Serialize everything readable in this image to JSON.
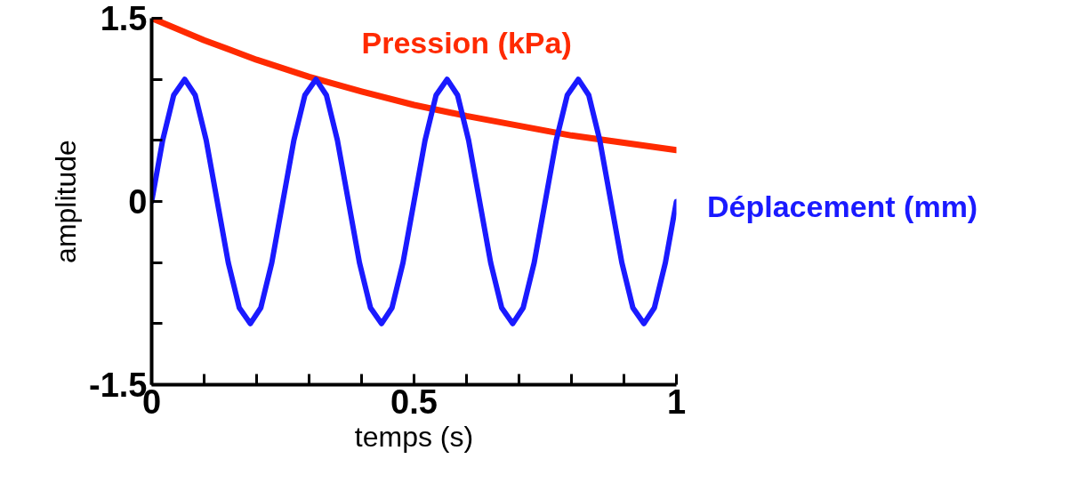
{
  "chart_data": {
    "type": "line",
    "xlabel": "temps (s)",
    "ylabel": "amplitude",
    "xlim": [
      0,
      1
    ],
    "ylim": [
      -1.5,
      1.5
    ],
    "xticks": [
      0,
      {
        "value": 0.1,
        "label": null
      },
      {
        "value": 0.2,
        "label": null
      },
      {
        "value": 0.3,
        "label": null
      },
      {
        "value": 0.4,
        "label": null
      },
      0.5,
      {
        "value": 0.6,
        "label": null
      },
      {
        "value": 0.7,
        "label": null
      },
      {
        "value": 0.8,
        "label": null
      },
      {
        "value": 0.9,
        "label": null
      },
      1
    ],
    "yticks": [
      {
        "value": -1.5,
        "label": "-1.5"
      },
      {
        "value": -1,
        "label": null
      },
      {
        "value": -0.5,
        "label": null
      },
      0,
      {
        "value": 0.5,
        "label": null
      },
      {
        "value": 1,
        "label": null
      },
      {
        "value": 1.5,
        "label": "1.5"
      }
    ],
    "grid": false,
    "legend": false,
    "marker": "none",
    "line_style": "solid",
    "series": [
      {
        "name": "Pression (kPa)",
        "color": "#ff2a00",
        "x": [
          0,
          0.1,
          0.2,
          0.3,
          0.4,
          0.5,
          0.6,
          0.7,
          0.8,
          0.9,
          1
        ],
        "values": [
          1.5,
          1.32,
          1.16,
          1.02,
          0.9,
          0.79,
          0.7,
          0.62,
          0.54,
          0.48,
          0.42
        ]
      },
      {
        "name": "Déplacement (mm)",
        "color": "#1a1aff",
        "x": [
          0,
          0.021,
          0.042,
          0.063,
          0.083,
          0.104,
          0.125,
          0.146,
          0.167,
          0.188,
          0.208,
          0.229,
          0.25,
          0.271,
          0.292,
          0.313,
          0.333,
          0.354,
          0.375,
          0.396,
          0.417,
          0.438,
          0.458,
          0.479,
          0.5,
          0.521,
          0.542,
          0.563,
          0.583,
          0.604,
          0.625,
          0.646,
          0.667,
          0.688,
          0.708,
          0.729,
          0.75,
          0.771,
          0.792,
          0.813,
          0.833,
          0.854,
          0.875,
          0.896,
          0.917,
          0.938,
          0.958,
          0.979,
          1
        ],
        "values": [
          0,
          0.5,
          0.87,
          1,
          0.87,
          0.5,
          0,
          -0.5,
          -0.87,
          -1,
          -0.87,
          -0.5,
          0,
          0.5,
          0.87,
          1,
          0.87,
          0.5,
          0,
          -0.5,
          -0.87,
          -1,
          -0.87,
          -0.5,
          0,
          0.5,
          0.87,
          1,
          0.87,
          0.5,
          0,
          -0.5,
          -0.87,
          -1,
          -0.87,
          -0.5,
          0,
          0.5,
          0.87,
          1,
          0.87,
          0.5,
          0,
          -0.5,
          -0.87,
          -1,
          -0.87,
          -0.5,
          0
        ]
      }
    ]
  }
}
